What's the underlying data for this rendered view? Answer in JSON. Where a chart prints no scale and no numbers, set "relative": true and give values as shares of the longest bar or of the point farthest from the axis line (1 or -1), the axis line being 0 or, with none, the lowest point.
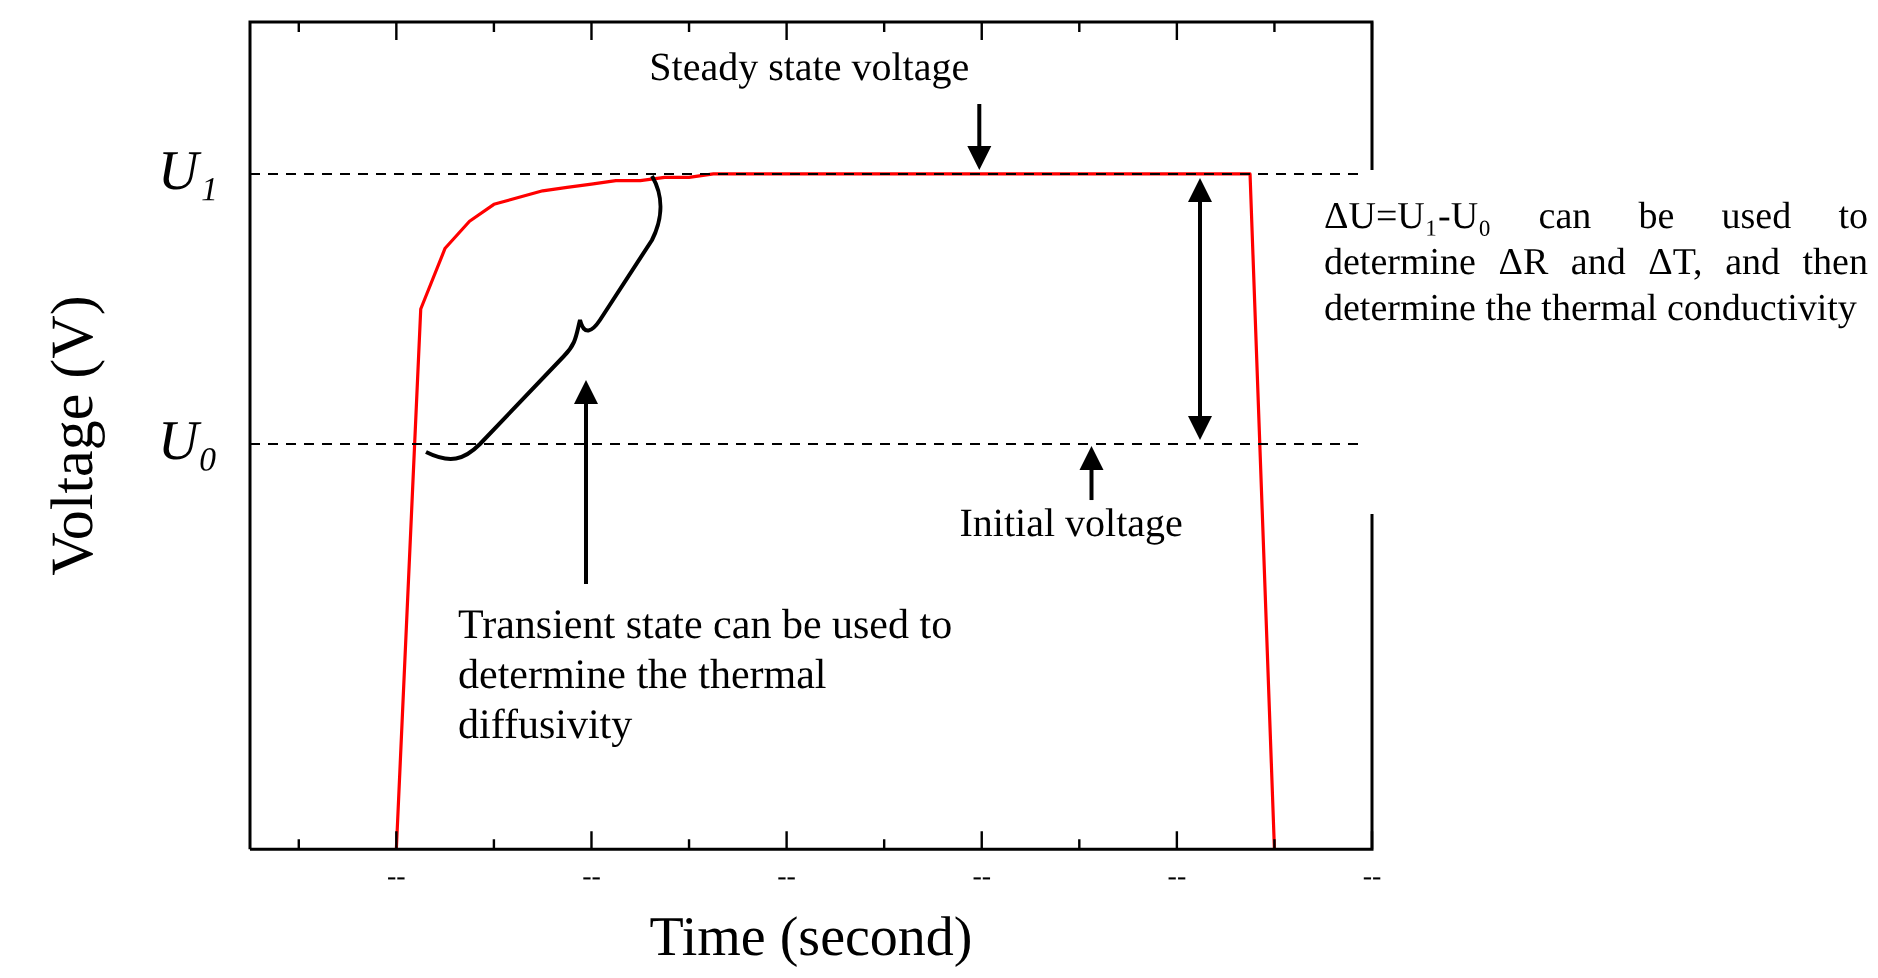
{
  "chart_data": {
    "type": "line",
    "xlabel": "Time (second)",
    "ylabel": "Voltage (V)",
    "relative": true,
    "grid": false,
    "legend": false,
    "marker": "none",
    "line_style": "solid",
    "categories": [
      null,
      null,
      null,
      null,
      null,
      null,
      "--",
      null,
      null,
      null,
      null,
      null,
      null,
      null,
      "--",
      null,
      null,
      null,
      null,
      null,
      null,
      null,
      "--",
      null,
      null,
      null,
      null,
      null,
      null,
      null,
      "--",
      null,
      null,
      null,
      null,
      null,
      null,
      null,
      "--",
      null,
      null,
      null,
      null,
      null,
      null,
      null,
      "--"
    ],
    "series": [
      {
        "color": "#ff0000",
        "values": [
          null,
          null,
          null,
          null,
          null,
          null,
          0,
          0.8,
          0.89,
          0.93,
          0.955,
          0.965,
          0.975,
          0.98,
          0.985,
          0.99,
          0.99,
          0.995,
          0.995,
          1,
          1,
          1,
          1,
          1,
          1,
          1,
          1,
          1,
          1,
          1,
          1,
          1,
          1,
          1,
          1,
          1,
          1,
          1,
          1,
          1,
          1,
          1,
          0,
          null,
          null,
          null,
          null
        ]
      }
    ],
    "ref_lines": [
      {
        "axis": "y",
        "value": 1,
        "label": "U₁",
        "line_style": "dashed",
        "color": "#000000"
      },
      {
        "axis": "y",
        "value": 0.6,
        "label": "U₀",
        "line_style": "dashed",
        "color": "#000000"
      }
    ],
    "annotations": [
      {
        "text": "Steady state voltage",
        "y": 1
      },
      {
        "text": "Initial voltage",
        "y": 0.6
      },
      "Transient state can be used to determine the thermal diffusivity",
      "ΔU=U₁-U₀ can be used to determine ΔR and ΔT, and then determine the thermal conductivity"
    ]
  }
}
